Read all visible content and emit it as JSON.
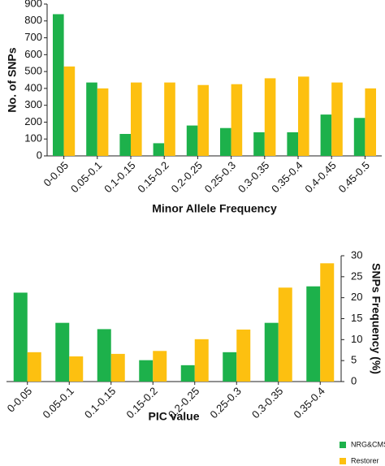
{
  "chart_data": [
    {
      "type": "bar",
      "y_label": "No. of SNPs",
      "x_label": "Minor Allele Frequency",
      "categories": [
        "0-0.05",
        "0.05-0.1",
        "0.1-0.15",
        "0.15-0.2",
        "0.2-0.25",
        "0.25-0.3",
        "0.3-0.35",
        "0.35-0.4",
        "0.4-0.45",
        "0.45-0.5"
      ],
      "series": [
        {
          "color": "#1db14b",
          "values": [
            840,
            435,
            130,
            75,
            180,
            165,
            140,
            140,
            245,
            225
          ]
        },
        {
          "color": "#fdc010",
          "values": [
            530,
            400,
            435,
            435,
            420,
            425,
            460,
            470,
            435,
            400
          ]
        }
      ],
      "ylim": [
        0,
        900
      ],
      "yticks": [
        0,
        100,
        200,
        300,
        400,
        500,
        600,
        700,
        800,
        900
      ],
      "yaxis_side": "left"
    },
    {
      "type": "bar",
      "y_label": "SNPs Frequency (%)",
      "x_label": "PIC value",
      "categories": [
        "0-0.05",
        "0.05-0.1",
        "0.1-0.15",
        "0.15-0.2",
        "0.2-0.25",
        "0.25-0.3",
        "0.3-0.35",
        "0.35-0.4"
      ],
      "series": [
        {
          "name": "NRG&CMS",
          "color": "#1db14b",
          "values": [
            21.2,
            14,
            12.5,
            5.1,
            3.9,
            7,
            14,
            22.7
          ]
        },
        {
          "name": "Restorer",
          "color": "#fdc010",
          "values": [
            7,
            6,
            6.6,
            7.3,
            10.1,
            12.4,
            22.4,
            28.2
          ]
        }
      ],
      "ylim": [
        0,
        30
      ],
      "yticks": [
        0,
        5,
        10,
        15,
        20,
        25,
        30
      ],
      "yaxis_side": "right",
      "legend": "bottom right"
    }
  ]
}
